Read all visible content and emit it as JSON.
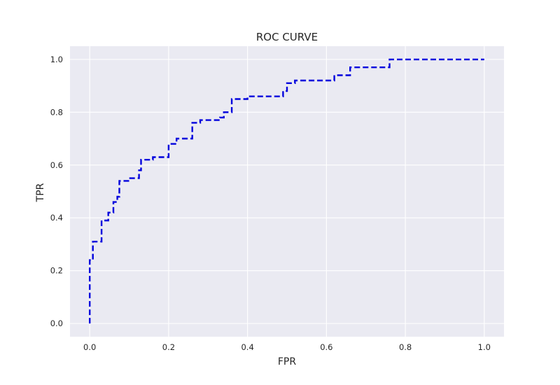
{
  "chart_data": {
    "type": "line",
    "title": "ROC CURVE",
    "xlabel": "FPR",
    "ylabel": "TPR",
    "xlim": [
      -0.05,
      1.05
    ],
    "ylim": [
      -0.05,
      1.05
    ],
    "x_ticks": [
      0.0,
      0.2,
      0.4,
      0.6,
      0.8,
      1.0
    ],
    "y_ticks": [
      0.0,
      0.2,
      0.4,
      0.6,
      0.8,
      1.0
    ],
    "x_tick_labels": [
      "0.0",
      "0.2",
      "0.4",
      "0.6",
      "0.8",
      "1.0"
    ],
    "y_tick_labels": [
      "0.0",
      "0.2",
      "0.4",
      "0.6",
      "0.8",
      "1.0"
    ],
    "grid": true,
    "series": [
      {
        "color": "#0000dd",
        "linestyle": "dashed",
        "x": [
          0.0,
          0.0,
          0.005,
          0.005,
          0.008,
          0.008,
          0.03,
          0.03,
          0.047,
          0.047,
          0.06,
          0.06,
          0.07,
          0.07,
          0.075,
          0.075,
          0.1,
          0.1,
          0.125,
          0.125,
          0.13,
          0.13,
          0.16,
          0.16,
          0.2,
          0.2,
          0.22,
          0.22,
          0.26,
          0.26,
          0.28,
          0.28,
          0.33,
          0.33,
          0.34,
          0.34,
          0.36,
          0.36,
          0.4,
          0.4,
          0.49,
          0.49,
          0.5,
          0.5,
          0.52,
          0.52,
          0.62,
          0.62,
          0.66,
          0.66,
          0.76,
          0.76,
          0.88,
          0.88,
          1.0
        ],
        "y": [
          0.0,
          0.24,
          0.24,
          0.24,
          0.24,
          0.31,
          0.31,
          0.39,
          0.39,
          0.42,
          0.42,
          0.46,
          0.46,
          0.48,
          0.48,
          0.54,
          0.54,
          0.55,
          0.55,
          0.58,
          0.58,
          0.62,
          0.62,
          0.63,
          0.63,
          0.68,
          0.68,
          0.7,
          0.7,
          0.76,
          0.76,
          0.77,
          0.77,
          0.78,
          0.78,
          0.8,
          0.8,
          0.85,
          0.85,
          0.86,
          0.86,
          0.88,
          0.88,
          0.91,
          0.91,
          0.92,
          0.92,
          0.94,
          0.94,
          0.97,
          0.97,
          1.0,
          1.0,
          1.0,
          1.0
        ]
      }
    ]
  }
}
